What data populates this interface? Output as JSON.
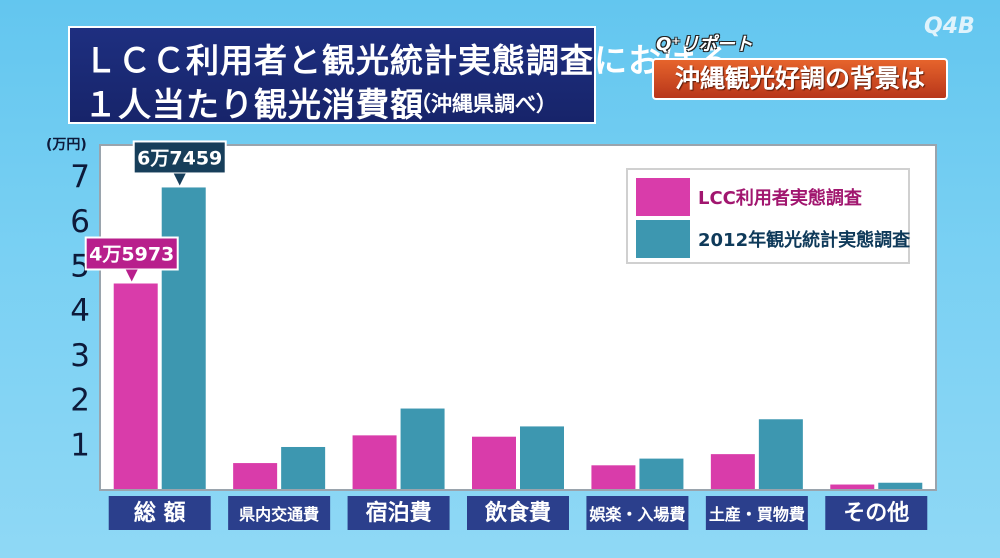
{
  "header": {
    "title_line1": "ＬＣＣ利用者と観光統計実態調査における",
    "title_line2": "１人当たり観光消費額",
    "note": "（沖縄県調べ）",
    "report_tag": "Q⁺リポート",
    "subtitle": "沖縄観光好調の背景は",
    "logo": "Q4B"
  },
  "colors": {
    "lcc": "#d93caa",
    "survey2012": "#3d97b0",
    "category_box": "#2b3f8c"
  },
  "chart_data": {
    "type": "bar",
    "unit_label": "(万円)",
    "categories": [
      "総 額",
      "県内交通費",
      "宿泊費",
      "飲食費",
      "娯楽・入場費",
      "土産・買物費",
      "その他"
    ],
    "series": [
      {
        "name": "LCC利用者実態調査",
        "values": [
          4.5973,
          0.58,
          1.2,
          1.17,
          0.53,
          0.78,
          0.1
        ]
      },
      {
        "name": "2012年観光統計実態調査",
        "values": [
          6.7459,
          0.94,
          1.8,
          1.4,
          0.68,
          1.56,
          0.14
        ]
      }
    ],
    "callouts": [
      "4万5973",
      "6万7459"
    ],
    "yticks": [
      "1",
      "2",
      "3",
      "4",
      "5",
      "6",
      "7"
    ],
    "ylim": [
      0,
      8
    ],
    "legend_position": "top-right",
    "grid": false
  }
}
